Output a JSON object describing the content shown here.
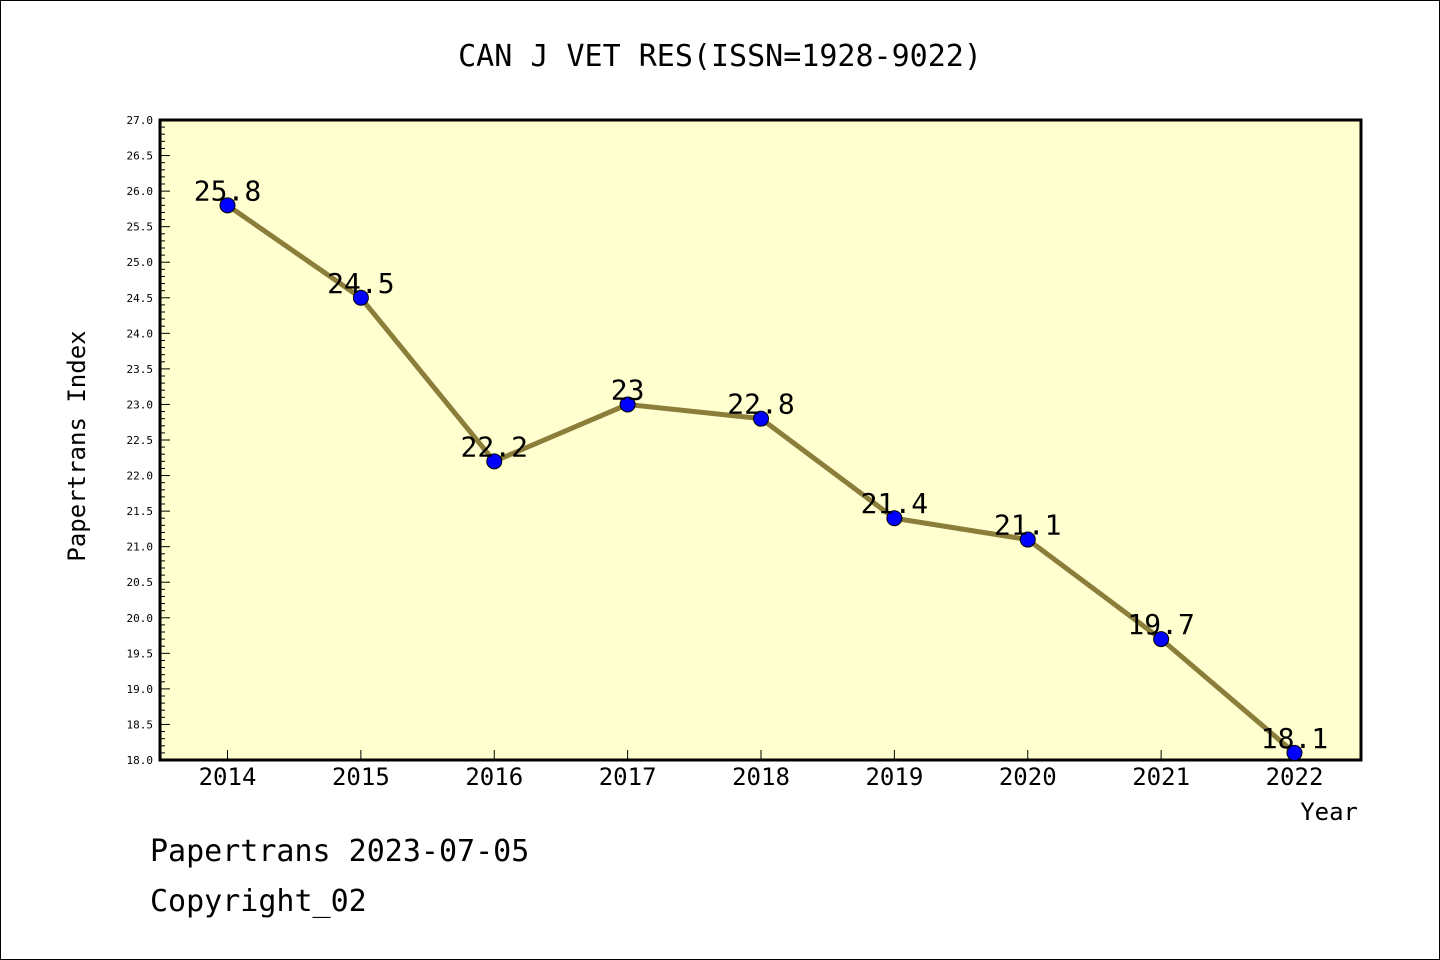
{
  "chart_data": {
    "type": "line",
    "title": "CAN J VET RES(ISSN=1928-9022)",
    "xlabel": "Year",
    "ylabel": "Papertrans Index",
    "categories": [
      "2014",
      "2015",
      "2016",
      "2017",
      "2018",
      "2019",
      "2020",
      "2021",
      "2022"
    ],
    "series": [
      {
        "values": [
          25.8,
          24.5,
          22.2,
          23,
          22.8,
          21.4,
          21.1,
          19.7,
          18.1
        ],
        "data_labels": [
          "25.8",
          "24.5",
          "22.2",
          "23",
          "22.8",
          "21.4",
          "21.1",
          "19.7",
          "18.1"
        ]
      }
    ],
    "ylim": [
      18.0,
      27.0
    ],
    "y_ticks": [
      "18.0",
      "18.5",
      "19.0",
      "19.5",
      "20.0",
      "20.5",
      "21.0",
      "21.5",
      "22.0",
      "22.5",
      "23.0",
      "23.5",
      "24.0",
      "24.5",
      "25.0",
      "25.5",
      "26.0",
      "26.5",
      "27.0"
    ],
    "grid": false,
    "colors": {
      "plot_background": "#ffffd0",
      "line": "#8b7d3a",
      "marker": "#0000ff"
    }
  },
  "footer": {
    "line1": "Papertrans 2023-07-05",
    "line2": "Copyright_02"
  }
}
